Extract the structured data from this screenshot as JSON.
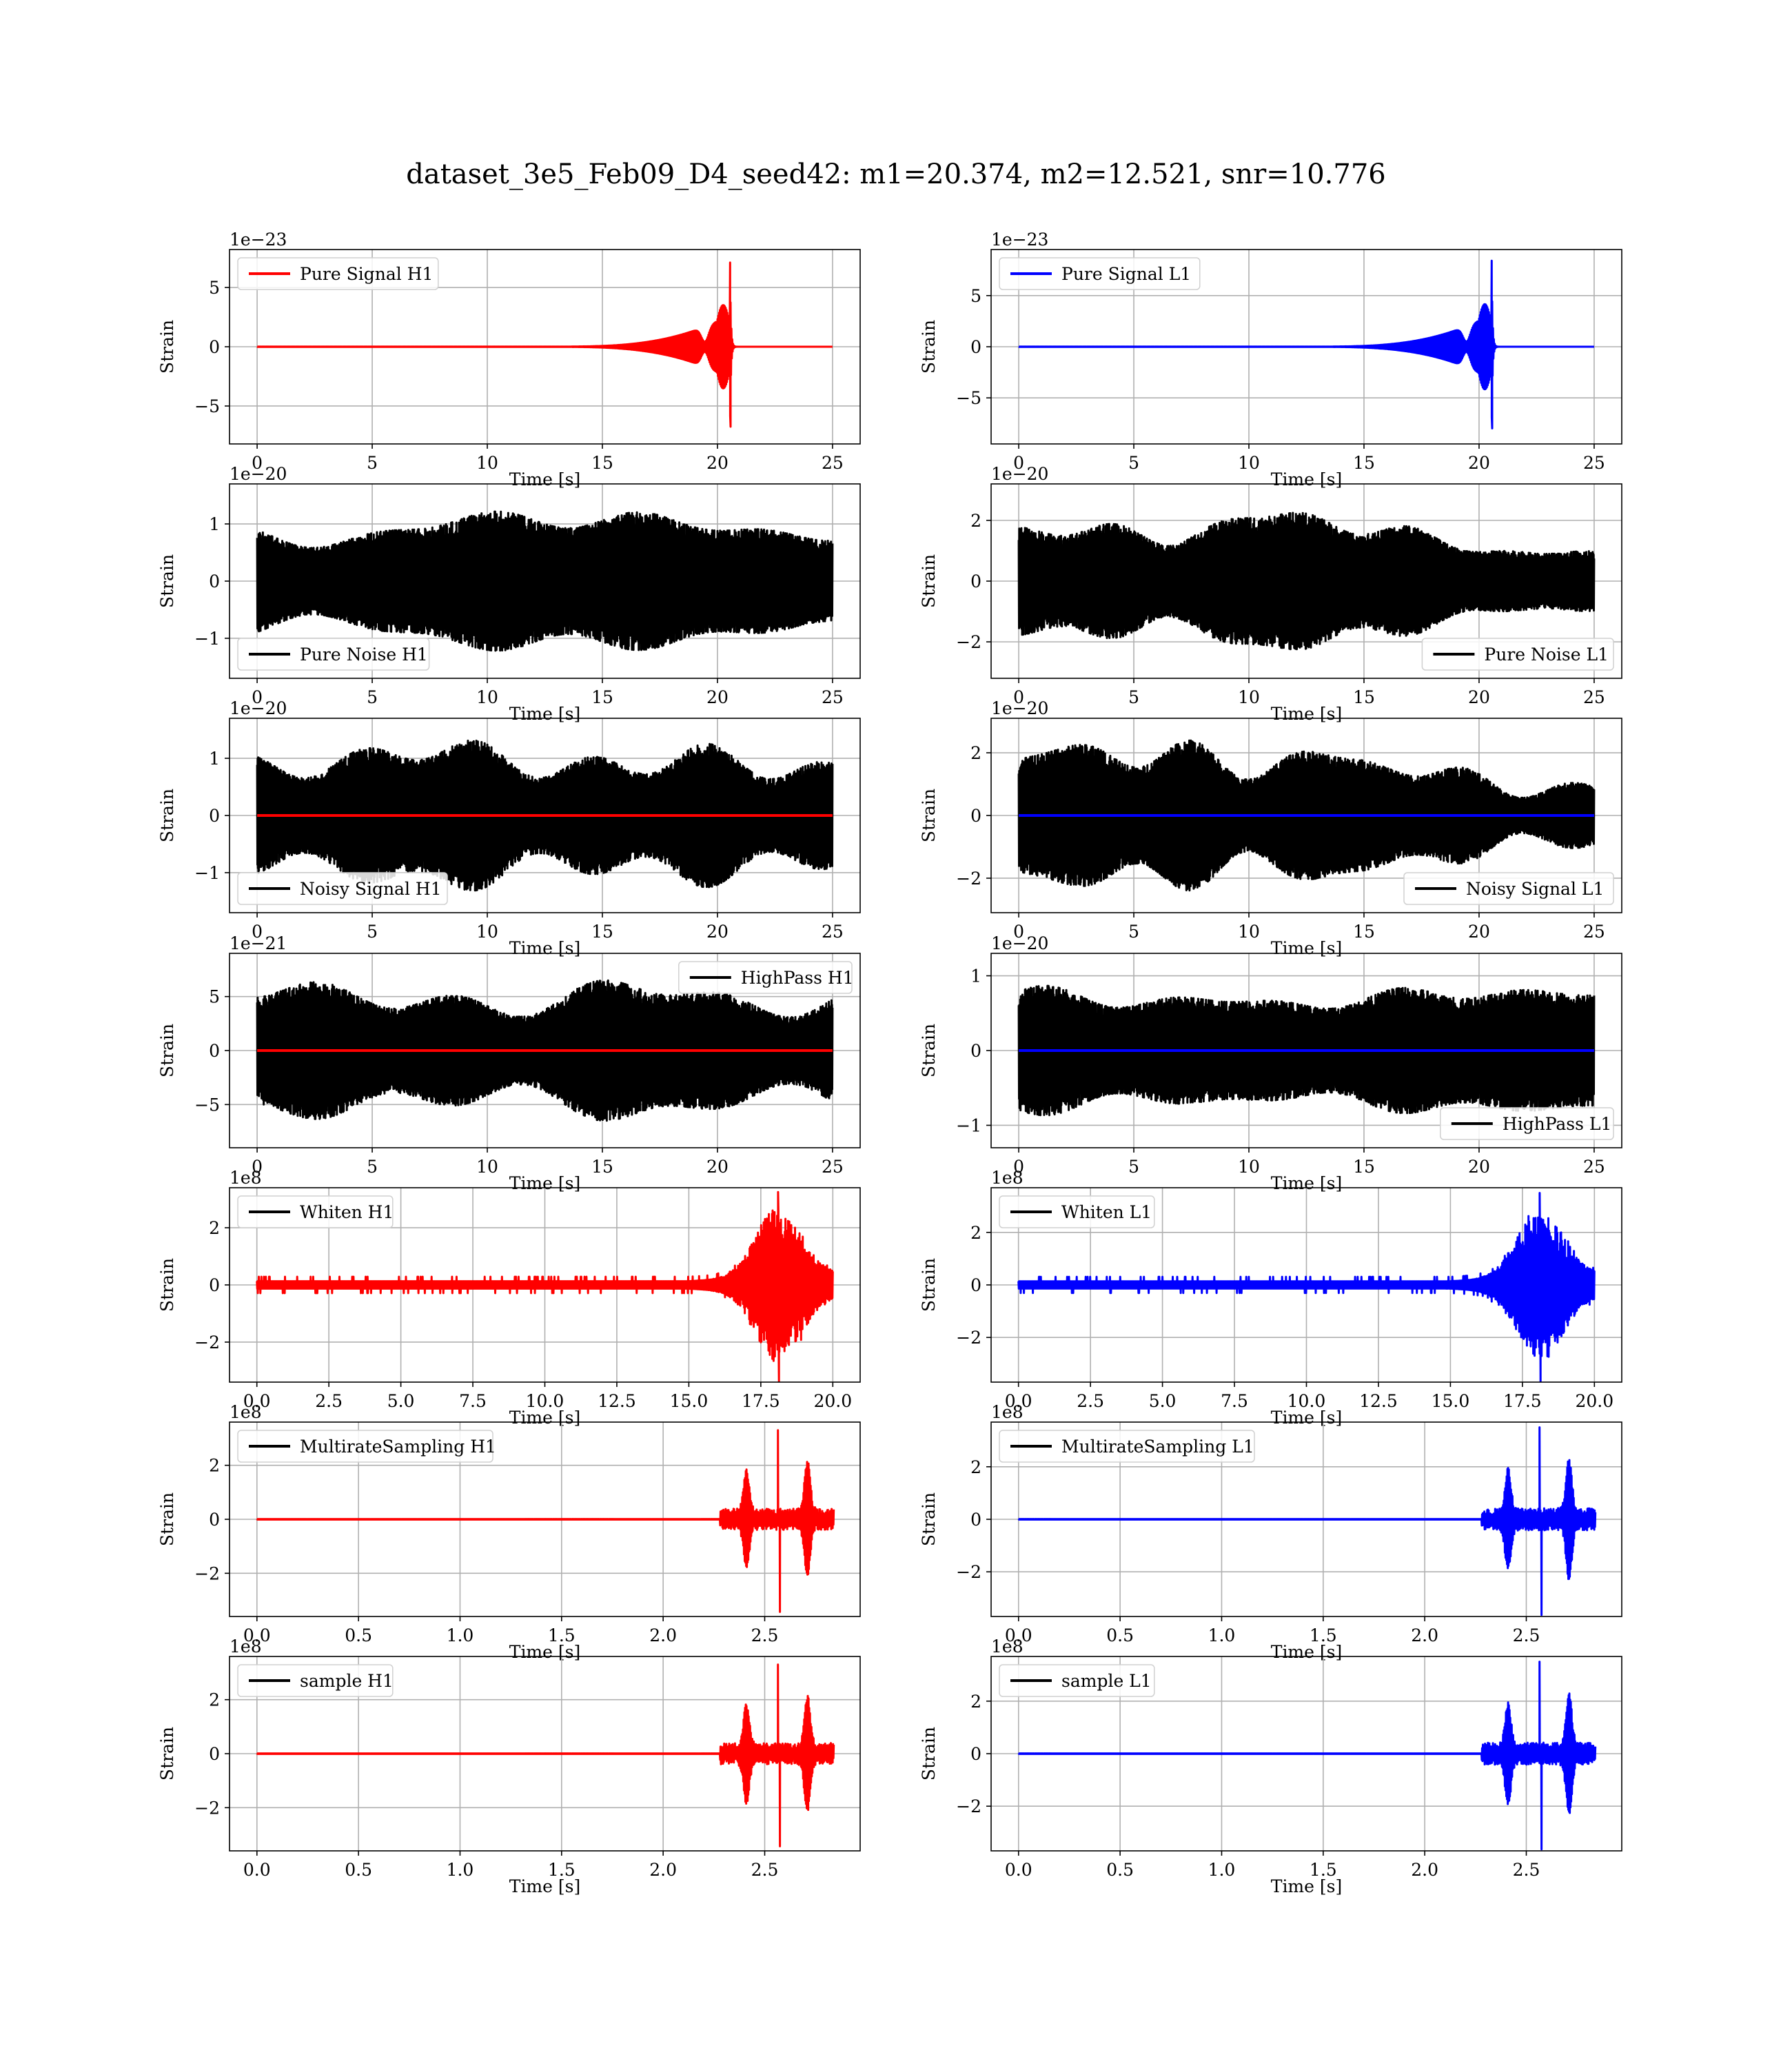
{
  "figure": {
    "title": "dataset_3e5_Feb09_D4_seed42: m1=20.374, m2=12.521, snr=10.776"
  },
  "colors": {
    "red": "#ff0000",
    "blue": "#0000ff",
    "black": "#000000",
    "grid": "#b0b0b0"
  },
  "chart_data": [
    {
      "id": "pure_signal_h1",
      "type": "line",
      "col": 0,
      "row": 0,
      "legend": "Pure Signal H1",
      "legend_color": "#ff0000",
      "legend_loc": "top-left",
      "xlabel": "Time [s]",
      "ylabel": "Strain",
      "offset_text": "1e−23",
      "xlim": [
        -1.2,
        26.2
      ],
      "ylim": [
        -8.2,
        8.2
      ],
      "xticks": [
        0,
        5,
        10,
        15,
        20,
        25
      ],
      "xtick_labels": [
        "0",
        "5",
        "10",
        "15",
        "20",
        "25"
      ],
      "yticks": [
        -5,
        0,
        5
      ],
      "ytick_labels": [
        "−5",
        "0",
        "5"
      ],
      "grid": true,
      "x_range": [
        0,
        25
      ],
      "series": [
        {
          "kind": "chirp",
          "color": "#ff0000",
          "amp": 7.1,
          "merger": 20.55,
          "t_end": 25
        }
      ]
    },
    {
      "id": "pure_signal_l1",
      "type": "line",
      "col": 1,
      "row": 0,
      "legend": "Pure Signal L1",
      "legend_color": "#0000ff",
      "legend_loc": "top-left",
      "xlabel": "Time [s]",
      "ylabel": "Strain",
      "offset_text": "1e−23",
      "xlim": [
        -1.2,
        26.2
      ],
      "ylim": [
        -9.5,
        9.5
      ],
      "xticks": [
        0,
        5,
        10,
        15,
        20,
        25
      ],
      "xtick_labels": [
        "0",
        "5",
        "10",
        "15",
        "20",
        "25"
      ],
      "yticks": [
        -5,
        0,
        5
      ],
      "ytick_labels": [
        "−5",
        "0",
        "5"
      ],
      "grid": true,
      "x_range": [
        0,
        25
      ],
      "series": [
        {
          "kind": "chirp",
          "color": "#0000ff",
          "amp": 8.4,
          "merger": 20.55,
          "t_end": 25
        }
      ]
    },
    {
      "id": "pure_noise_h1",
      "type": "line",
      "col": 0,
      "row": 1,
      "legend": "Pure Noise H1",
      "legend_color": "#000000",
      "legend_loc": "bottom-left",
      "xlabel": "Time [s]",
      "ylabel": "Strain",
      "offset_text": "1e−20",
      "xlim": [
        -1.2,
        26.2
      ],
      "ylim": [
        -1.7,
        1.7
      ],
      "xticks": [
        0,
        5,
        10,
        15,
        20,
        25
      ],
      "xtick_labels": [
        "0",
        "5",
        "10",
        "15",
        "20",
        "25"
      ],
      "yticks": [
        -1,
        0,
        1
      ],
      "ytick_labels": [
        "−1",
        "0",
        "1"
      ],
      "grid": true,
      "x_range": [
        0,
        25
      ],
      "series": [
        {
          "kind": "noise",
          "color": "#000000",
          "amp": 1.5,
          "seed": 11,
          "t_end": 25
        }
      ]
    },
    {
      "id": "pure_noise_l1",
      "type": "line",
      "col": 1,
      "row": 1,
      "legend": "Pure Noise L1",
      "legend_color": "#000000",
      "legend_loc": "bottom-right",
      "xlabel": "Time [s]",
      "ylabel": "Strain",
      "offset_text": "1e−20",
      "xlim": [
        -1.2,
        26.2
      ],
      "ylim": [
        -3.2,
        3.2
      ],
      "xticks": [
        0,
        5,
        10,
        15,
        20,
        25
      ],
      "xtick_labels": [
        "0",
        "5",
        "10",
        "15",
        "20",
        "25"
      ],
      "yticks": [
        -2,
        0,
        2
      ],
      "ytick_labels": [
        "−2",
        "0",
        "2"
      ],
      "grid": true,
      "x_range": [
        0,
        25
      ],
      "series": [
        {
          "kind": "noise",
          "color": "#000000",
          "amp": 2.8,
          "seed": 23,
          "taper": 0.55,
          "t_end": 25
        }
      ]
    },
    {
      "id": "noisy_signal_h1",
      "type": "line",
      "col": 0,
      "row": 2,
      "legend": "Noisy Signal H1",
      "legend_color": "#000000",
      "legend_loc": "bottom-left",
      "xlabel": "Time [s]",
      "ylabel": "Strain",
      "offset_text": "1e−20",
      "xlim": [
        -1.2,
        26.2
      ],
      "ylim": [
        -1.7,
        1.7
      ],
      "xticks": [
        0,
        5,
        10,
        15,
        20,
        25
      ],
      "xtick_labels": [
        "0",
        "5",
        "10",
        "15",
        "20",
        "25"
      ],
      "yticks": [
        -1,
        0,
        1
      ],
      "ytick_labels": [
        "−1",
        "0",
        "1"
      ],
      "grid": true,
      "x_range": [
        0,
        25
      ],
      "series": [
        {
          "kind": "noise",
          "color": "#000000",
          "amp": 1.5,
          "seed": 37,
          "t_end": 25
        },
        {
          "kind": "flat",
          "color": "#ff0000",
          "t_end": 25
        }
      ]
    },
    {
      "id": "noisy_signal_l1",
      "type": "line",
      "col": 1,
      "row": 2,
      "legend": "Noisy Signal L1",
      "legend_color": "#000000",
      "legend_loc": "bottom-right",
      "xlabel": "Time [s]",
      "ylabel": "Strain",
      "offset_text": "1e−20",
      "xlim": [
        -1.2,
        26.2
      ],
      "ylim": [
        -3.1,
        3.1
      ],
      "xticks": [
        0,
        5,
        10,
        15,
        20,
        25
      ],
      "xtick_labels": [
        "0",
        "5",
        "10",
        "15",
        "20",
        "25"
      ],
      "yticks": [
        -2,
        0,
        2
      ],
      "ytick_labels": [
        "−2",
        "0",
        "2"
      ],
      "grid": true,
      "x_range": [
        0,
        25
      ],
      "series": [
        {
          "kind": "noise",
          "color": "#000000",
          "amp": 2.8,
          "seed": 41,
          "taper": 0.55,
          "t_end": 25
        },
        {
          "kind": "flat",
          "color": "#0000ff",
          "t_end": 25
        }
      ]
    },
    {
      "id": "highpass_h1",
      "type": "line",
      "col": 0,
      "row": 3,
      "legend": "HighPass H1",
      "legend_color": "#000000",
      "legend_loc": "top-right",
      "xlabel": "Time [s]",
      "ylabel": "Strain",
      "offset_text": "1e−21",
      "xlim": [
        -1.2,
        26.2
      ],
      "ylim": [
        -9.0,
        9.0
      ],
      "xticks": [
        0,
        5,
        10,
        15,
        20,
        25
      ],
      "xtick_labels": [
        "0",
        "5",
        "10",
        "15",
        "20",
        "25"
      ],
      "yticks": [
        -5,
        0,
        5
      ],
      "ytick_labels": [
        "−5",
        "0",
        "5"
      ],
      "grid": true,
      "x_range": [
        0,
        25
      ],
      "series": [
        {
          "kind": "noise",
          "color": "#000000",
          "amp": 7.8,
          "seed": 53,
          "t_end": 25
        },
        {
          "kind": "flat",
          "color": "#ff0000",
          "t_end": 25
        }
      ]
    },
    {
      "id": "highpass_l1",
      "type": "line",
      "col": 1,
      "row": 3,
      "legend": "HighPass L1",
      "legend_color": "#000000",
      "legend_loc": "bottom-right",
      "xlabel": "Time [s]",
      "ylabel": "Strain",
      "offset_text": "1e−20",
      "xlim": [
        -1.2,
        26.2
      ],
      "ylim": [
        -1.3,
        1.3
      ],
      "xticks": [
        0,
        5,
        10,
        15,
        20,
        25
      ],
      "xtick_labels": [
        "0",
        "5",
        "10",
        "15",
        "20",
        "25"
      ],
      "yticks": [
        -1,
        0,
        1
      ],
      "ytick_labels": [
        "−1",
        "0",
        "1"
      ],
      "grid": true,
      "x_range": [
        0,
        25
      ],
      "series": [
        {
          "kind": "noise",
          "color": "#000000",
          "amp": 1.1,
          "seed": 67,
          "t_end": 25
        },
        {
          "kind": "flat",
          "color": "#0000ff",
          "t_end": 25
        }
      ]
    },
    {
      "id": "whiten_h1",
      "type": "line",
      "col": 0,
      "row": 4,
      "legend": "Whiten H1",
      "legend_color": "#000000",
      "legend_loc": "top-left",
      "xlabel": "Time [s]",
      "ylabel": "Strain",
      "offset_text": "1e8",
      "xlim": [
        -0.95,
        20.95
      ],
      "ylim": [
        -3.4,
        3.4
      ],
      "xticks": [
        0,
        2.5,
        5,
        7.5,
        10,
        12.5,
        15,
        17.5,
        20
      ],
      "xtick_labels": [
        "0.0",
        "2.5",
        "5.0",
        "7.5",
        "10.0",
        "12.5",
        "15.0",
        "17.5",
        "20.0"
      ],
      "yticks": [
        -2,
        0,
        2
      ],
      "ytick_labels": [
        "−2",
        "0",
        "2"
      ],
      "grid": true,
      "x_range": [
        0,
        20
      ],
      "series": [
        {
          "kind": "whiten",
          "color": "#ff0000",
          "amp": 3.25,
          "peak": 18.1,
          "seed": 71,
          "t_end": 20
        }
      ]
    },
    {
      "id": "whiten_l1",
      "type": "line",
      "col": 1,
      "row": 4,
      "legend": "Whiten L1",
      "legend_color": "#000000",
      "legend_loc": "top-left",
      "xlabel": "Time [s]",
      "ylabel": "Strain",
      "offset_text": "1e8",
      "xlim": [
        -0.95,
        20.95
      ],
      "ylim": [
        -3.7,
        3.7
      ],
      "xticks": [
        0,
        2.5,
        5,
        7.5,
        10,
        12.5,
        15,
        17.5,
        20
      ],
      "xtick_labels": [
        "0.0",
        "2.5",
        "5.0",
        "7.5",
        "10.0",
        "12.5",
        "15.0",
        "17.5",
        "20.0"
      ],
      "yticks": [
        -2,
        0,
        2
      ],
      "ytick_labels": [
        "−2",
        "0",
        "2"
      ],
      "grid": true,
      "x_range": [
        0,
        20
      ],
      "series": [
        {
          "kind": "whiten",
          "color": "#0000ff",
          "amp": 3.5,
          "peak": 18.1,
          "seed": 83,
          "t_end": 20
        }
      ]
    },
    {
      "id": "multirate_h1",
      "type": "line",
      "col": 0,
      "row": 5,
      "legend": "MultirateSampling H1",
      "legend_color": "#000000",
      "legend_loc": "top-left",
      "xlabel": "Time [s]",
      "ylabel": "Strain",
      "offset_text": "1e8",
      "xlim": [
        -0.135,
        2.97
      ],
      "ylim": [
        -3.6,
        3.6
      ],
      "xticks": [
        0,
        0.5,
        1,
        1.5,
        2,
        2.5
      ],
      "xtick_labels": [
        "0.0",
        "0.5",
        "1.0",
        "1.5",
        "2.0",
        "2.5"
      ],
      "yticks": [
        -2,
        0,
        2
      ],
      "ytick_labels": [
        "−2",
        "0",
        "2"
      ],
      "grid": true,
      "x_range": [
        0,
        2.84
      ],
      "series": [
        {
          "kind": "multirate",
          "color": "#ff0000",
          "amp": 3.3,
          "seed": 91,
          "t_end": 2.84
        }
      ]
    },
    {
      "id": "multirate_l1",
      "type": "line",
      "col": 1,
      "row": 5,
      "legend": "MultirateSampling L1",
      "legend_color": "#000000",
      "legend_loc": "top-left",
      "xlabel": "Time [s]",
      "ylabel": "Strain",
      "offset_text": "1e8",
      "xlim": [
        -0.135,
        2.97
      ],
      "ylim": [
        -3.7,
        3.7
      ],
      "xticks": [
        0,
        0.5,
        1,
        1.5,
        2,
        2.5
      ],
      "xtick_labels": [
        "0.0",
        "0.5",
        "1.0",
        "1.5",
        "2.0",
        "2.5"
      ],
      "yticks": [
        -2,
        0,
        2
      ],
      "ytick_labels": [
        "−2",
        "0",
        "2"
      ],
      "grid": true,
      "x_range": [
        0,
        2.84
      ],
      "series": [
        {
          "kind": "multirate",
          "color": "#0000ff",
          "amp": 3.5,
          "seed": 97,
          "t_end": 2.84
        }
      ]
    },
    {
      "id": "sample_h1",
      "type": "line",
      "col": 0,
      "row": 6,
      "legend": "sample H1",
      "legend_color": "#000000",
      "legend_loc": "top-left",
      "xlabel": "Time [s]",
      "ylabel": "Strain",
      "offset_text": "1e8",
      "xlim": [
        -0.135,
        2.97
      ],
      "ylim": [
        -3.6,
        3.6
      ],
      "xticks": [
        0,
        0.5,
        1,
        1.5,
        2,
        2.5
      ],
      "xtick_labels": [
        "0.0",
        "0.5",
        "1.0",
        "1.5",
        "2.0",
        "2.5"
      ],
      "yticks": [
        -2,
        0,
        2
      ],
      "ytick_labels": [
        "−2",
        "0",
        "2"
      ],
      "grid": true,
      "x_range": [
        0,
        2.84
      ],
      "series": [
        {
          "kind": "multirate",
          "color": "#ff0000",
          "amp": 3.3,
          "seed": 101,
          "t_end": 2.84
        }
      ]
    },
    {
      "id": "sample_l1",
      "type": "line",
      "col": 1,
      "row": 6,
      "legend": "sample L1",
      "legend_color": "#000000",
      "legend_loc": "top-left",
      "xlabel": "Time [s]",
      "ylabel": "Strain",
      "offset_text": "1e8",
      "xlim": [
        -0.135,
        2.97
      ],
      "ylim": [
        -3.7,
        3.7
      ],
      "xticks": [
        0,
        0.5,
        1,
        1.5,
        2,
        2.5
      ],
      "xtick_labels": [
        "0.0",
        "0.5",
        "1.0",
        "1.5",
        "2.0",
        "2.5"
      ],
      "yticks": [
        -2,
        0,
        2
      ],
      "ytick_labels": [
        "−2",
        "0",
        "2"
      ],
      "grid": true,
      "x_range": [
        0,
        2.84
      ],
      "series": [
        {
          "kind": "multirate",
          "color": "#0000ff",
          "amp": 3.5,
          "seed": 109,
          "t_end": 2.84
        }
      ]
    }
  ]
}
